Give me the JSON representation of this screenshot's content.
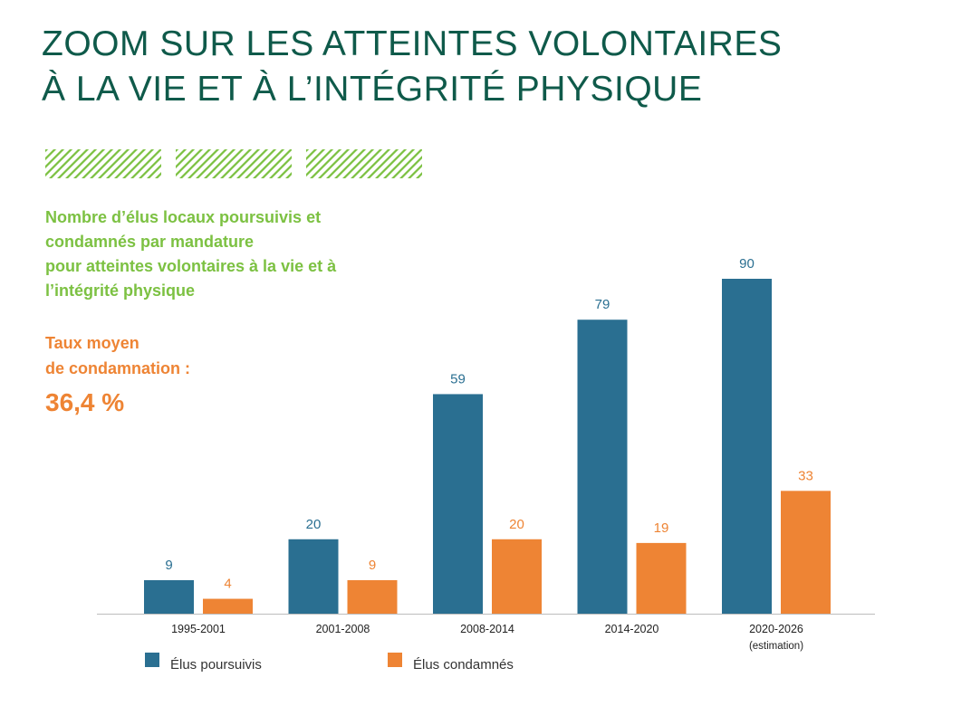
{
  "header": {
    "title_line1": "ZOOM SUR LES ATTEINTES VOLONTAIRES",
    "title_line2": "À LA VIE ET À L’INTÉGRITÉ PHYSIQUE"
  },
  "subtitle_lines": [
    "Nombre d’élus locaux poursuivis et",
    "condamnés par mandature",
    "pour atteintes volontaires à la vie et à",
    "l’intégrité physique"
  ],
  "rate": {
    "label_line1": "Taux moyen",
    "label_line2": "de condamnation :",
    "value": "36,4 %"
  },
  "colors": {
    "title": "#0f5a4a",
    "accent_green": "#7cc142",
    "accent_orange": "#ee8434",
    "series_blue": "#2a6f91",
    "series_orange": "#ee8434"
  },
  "chart_data": {
    "type": "bar",
    "categories": [
      "1995-2001",
      "2001-2008",
      "2008-2014",
      "2014-2020",
      "2020-2026"
    ],
    "category_notes": [
      "",
      "",
      "",
      "",
      "(estimation)"
    ],
    "series": [
      {
        "name": "Élus poursuivis",
        "values": [
          9,
          20,
          59,
          79,
          90
        ],
        "color": "#2a6f91"
      },
      {
        "name": "Élus condamnés",
        "values": [
          4,
          9,
          20,
          19,
          33
        ],
        "color": "#ee8434"
      }
    ],
    "ylim": [
      0,
      90
    ],
    "grid": false,
    "legend": "bottom-left"
  }
}
